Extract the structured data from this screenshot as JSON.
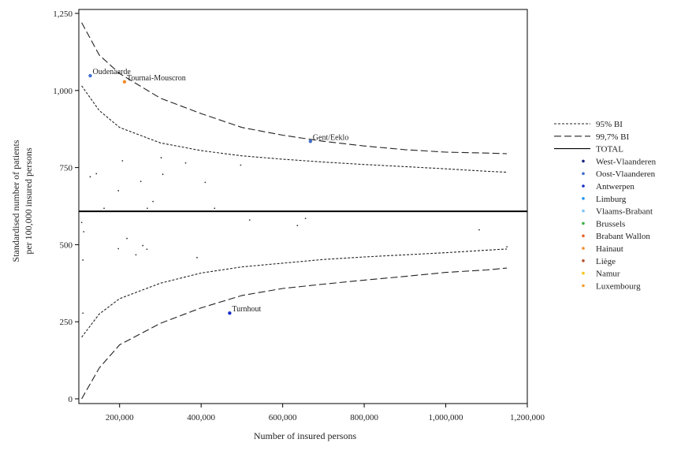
{
  "chart_data": {
    "type": "scatter",
    "xlabel": "Number of insured persons",
    "ylabel_lines": [
      "Standardised number of patients",
      "per 100,000 insured persons"
    ],
    "xlim": [
      100000,
      1200000
    ],
    "ylim": [
      0,
      1250
    ],
    "xticks": [
      200000,
      400000,
      600000,
      800000,
      1000000,
      1200000
    ],
    "xtick_labels": [
      "200,000",
      "400,000",
      "600,000",
      "800,000",
      "1,000,000",
      "1,200,000"
    ],
    "yticks": [
      0,
      250,
      500,
      750,
      1000,
      1250
    ],
    "ytick_labels": [
      "0",
      "250",
      "500",
      "750",
      "1,000",
      "1,250"
    ],
    "legend_position": "right",
    "legend": [
      {
        "label": "95% BI",
        "kind": "line",
        "dash": "3,2",
        "color": "#222222"
      },
      {
        "label": "99,7% BI",
        "kind": "line",
        "dash": "9,4",
        "color": "#222222"
      },
      {
        "label": "TOTAL",
        "kind": "line",
        "dash": "",
        "color": "#000000"
      },
      {
        "label": "West-Vlaanderen",
        "kind": "dot",
        "color": "#1a237e"
      },
      {
        "label": "Oost-Vlaanderen",
        "kind": "dot",
        "color": "#3f6fd1"
      },
      {
        "label": "Antwerpen",
        "kind": "dot",
        "color": "#1a2ecc"
      },
      {
        "label": "Limburg",
        "kind": "dot",
        "color": "#2196f3"
      },
      {
        "label": "Vlaams-Brabant",
        "kind": "dot",
        "color": "#7fc4f2"
      },
      {
        "label": "Brussels",
        "kind": "dot",
        "color": "#3cb043"
      },
      {
        "label": "Brabant Wallon",
        "kind": "dot",
        "color": "#e8642c"
      },
      {
        "label": "Hainaut",
        "kind": "dot",
        "color": "#f28c28"
      },
      {
        "label": "Liège",
        "kind": "dot",
        "color": "#b5522b"
      },
      {
        "label": "Namur",
        "kind": "dot",
        "color": "#f5c518"
      },
      {
        "label": "Luxembourg",
        "kind": "dot",
        "color": "#f0a030"
      }
    ],
    "total": 608,
    "ci95_upper": [
      [
        107000,
        1015
      ],
      [
        150000,
        935
      ],
      [
        200000,
        880
      ],
      [
        300000,
        830
      ],
      [
        400000,
        805
      ],
      [
        500000,
        788
      ],
      [
        600000,
        777
      ],
      [
        700000,
        768
      ],
      [
        800000,
        760
      ],
      [
        900000,
        753
      ],
      [
        1000000,
        746
      ],
      [
        1100000,
        738
      ],
      [
        1150000,
        735
      ]
    ],
    "ci95_lower": [
      [
        107000,
        200
      ],
      [
        150000,
        275
      ],
      [
        200000,
        325
      ],
      [
        300000,
        375
      ],
      [
        400000,
        408
      ],
      [
        500000,
        428
      ],
      [
        600000,
        440
      ],
      [
        700000,
        452
      ],
      [
        800000,
        460
      ],
      [
        900000,
        467
      ],
      [
        1000000,
        474
      ],
      [
        1100000,
        482
      ],
      [
        1150000,
        486
      ]
    ],
    "ci997_upper": [
      [
        107000,
        1220
      ],
      [
        150000,
        1115
      ],
      [
        200000,
        1055
      ],
      [
        300000,
        975
      ],
      [
        400000,
        925
      ],
      [
        500000,
        880
      ],
      [
        600000,
        855
      ],
      [
        700000,
        835
      ],
      [
        800000,
        820
      ],
      [
        900000,
        808
      ],
      [
        1000000,
        800
      ],
      [
        1100000,
        797
      ],
      [
        1150000,
        795
      ]
    ],
    "ci997_lower": [
      [
        107000,
        0
      ],
      [
        150000,
        100
      ],
      [
        200000,
        175
      ],
      [
        300000,
        245
      ],
      [
        400000,
        295
      ],
      [
        500000,
        335
      ],
      [
        600000,
        358
      ],
      [
        700000,
        372
      ],
      [
        800000,
        385
      ],
      [
        900000,
        397
      ],
      [
        1000000,
        410
      ],
      [
        1100000,
        418
      ],
      [
        1150000,
        424
      ]
    ],
    "labeled_points": [
      {
        "name": "Oudenaarde",
        "x": 128000,
        "y": 1048,
        "color": "#3f6fd1"
      },
      {
        "name": "Tournai-Mouscron",
        "x": 212000,
        "y": 1028,
        "color": "#f28c28"
      },
      {
        "name": "Gent/Eeklo",
        "x": 668000,
        "y": 835,
        "color": "#3f6fd1"
      },
      {
        "name": "Turnhout",
        "x": 470000,
        "y": 278,
        "color": "#1a2ecc"
      }
    ],
    "other_points": [
      [
        128000,
        720
      ],
      [
        143000,
        730
      ],
      [
        162000,
        618
      ],
      [
        197000,
        675
      ],
      [
        207000,
        772
      ],
      [
        252000,
        705
      ],
      [
        268000,
        618
      ],
      [
        282000,
        640
      ],
      [
        302000,
        782
      ],
      [
        306000,
        728
      ],
      [
        362000,
        765
      ],
      [
        410000,
        702
      ],
      [
        433000,
        618
      ],
      [
        497000,
        758
      ],
      [
        519000,
        580
      ],
      [
        636000,
        562
      ],
      [
        656000,
        585
      ],
      [
        1082000,
        548
      ],
      [
        1150000,
        493
      ],
      [
        107000,
        572
      ],
      [
        112000,
        542
      ],
      [
        110000,
        450
      ],
      [
        110000,
        278
      ],
      [
        197000,
        487
      ],
      [
        218000,
        520
      ],
      [
        240000,
        467
      ],
      [
        257000,
        497
      ],
      [
        267000,
        485
      ],
      [
        390000,
        458
      ]
    ]
  }
}
